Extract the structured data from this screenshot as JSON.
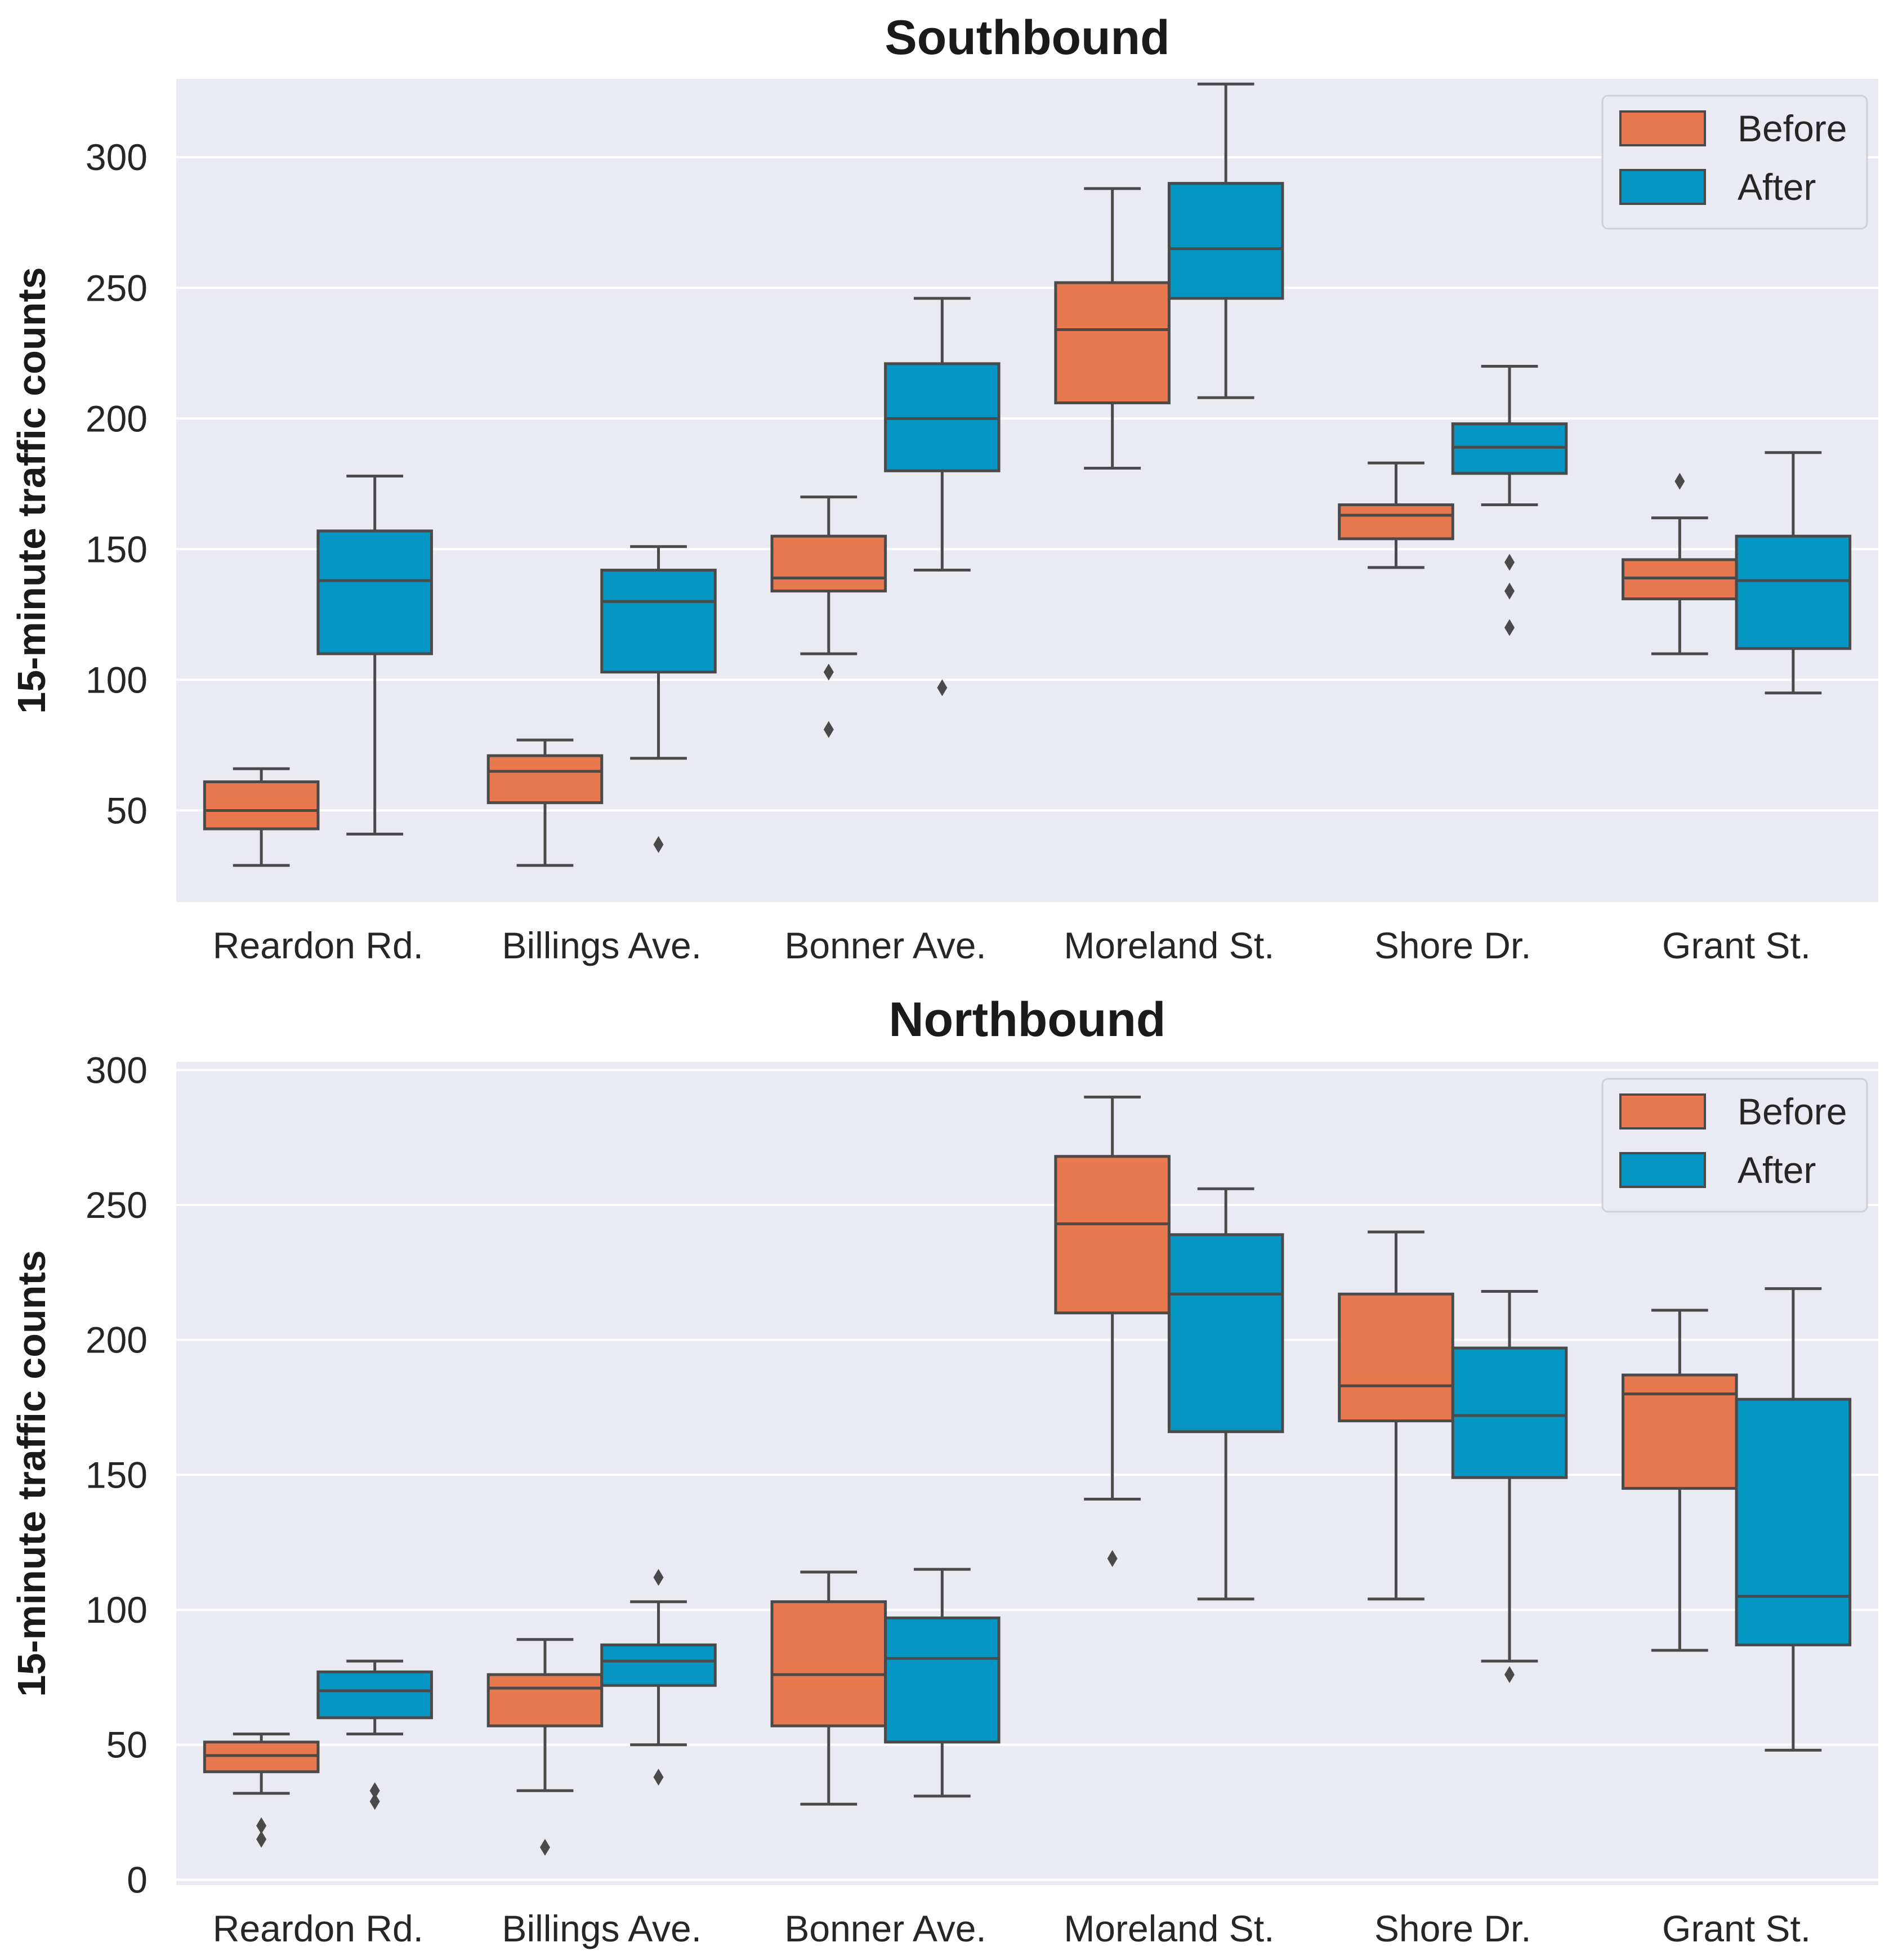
{
  "colors": {
    "before": "#e8784d",
    "after": "#0596c4",
    "panel_background": "#eaeaf2",
    "grid": "#ffffff",
    "line": "#4a4a4a"
  },
  "chart_data": [
    {
      "type": "box",
      "title": "Southbound",
      "xlabel": "",
      "ylabel": "15-minute traffic counts",
      "ylim": [
        15,
        330
      ],
      "yticks": [
        50,
        100,
        150,
        200,
        250,
        300
      ],
      "grid": true,
      "legend": "top-right",
      "categories": [
        "Reardon Rd.",
        "Billings Ave.",
        "Bonner Ave.",
        "Moreland St.",
        "Shore Dr.",
        "Grant St."
      ],
      "series": [
        {
          "name": "Before",
          "color_key": "before",
          "boxes": [
            {
              "whislo": 29,
              "q1": 43,
              "med": 50,
              "q3": 61,
              "whishi": 66,
              "fliers": []
            },
            {
              "whislo": 29,
              "q1": 53,
              "med": 65,
              "q3": 71,
              "whishi": 77,
              "fliers": []
            },
            {
              "whislo": 110,
              "q1": 134,
              "med": 139,
              "q3": 155,
              "whishi": 170,
              "fliers": [
                103,
                81
              ]
            },
            {
              "whislo": 181,
              "q1": 206,
              "med": 234,
              "q3": 252,
              "whishi": 288,
              "fliers": []
            },
            {
              "whislo": 143,
              "q1": 154,
              "med": 163,
              "q3": 167,
              "whishi": 183,
              "fliers": []
            },
            {
              "whislo": 110,
              "q1": 131,
              "med": 139,
              "q3": 146,
              "whishi": 162,
              "fliers": [
                176
              ]
            }
          ]
        },
        {
          "name": "After",
          "color_key": "after",
          "boxes": [
            {
              "whislo": 41,
              "q1": 110,
              "med": 138,
              "q3": 157,
              "whishi": 178,
              "fliers": []
            },
            {
              "whislo": 70,
              "q1": 103,
              "med": 130,
              "q3": 142,
              "whishi": 151,
              "fliers": [
                37
              ]
            },
            {
              "whislo": 142,
              "q1": 180,
              "med": 200,
              "q3": 221,
              "whishi": 246,
              "fliers": [
                97
              ]
            },
            {
              "whislo": 208,
              "q1": 246,
              "med": 265,
              "q3": 290,
              "whishi": 328,
              "fliers": []
            },
            {
              "whislo": 167,
              "q1": 179,
              "med": 189,
              "q3": 198,
              "whishi": 220,
              "fliers": [
                145,
                134,
                120
              ]
            },
            {
              "whislo": 95,
              "q1": 112,
              "med": 138,
              "q3": 155,
              "whishi": 187,
              "fliers": []
            }
          ]
        }
      ]
    },
    {
      "type": "box",
      "title": "Northbound",
      "xlabel": "",
      "ylabel": "15-minute traffic counts",
      "ylim": [
        -2,
        303
      ],
      "yticks": [
        0,
        50,
        100,
        150,
        200,
        250,
        300
      ],
      "grid": true,
      "legend": "top-right",
      "categories": [
        "Reardon Rd.",
        "Billings Ave.",
        "Bonner Ave.",
        "Moreland St.",
        "Shore Dr.",
        "Grant St."
      ],
      "series": [
        {
          "name": "Before",
          "color_key": "before",
          "boxes": [
            {
              "whislo": 32,
              "q1": 40,
              "med": 46,
              "q3": 51,
              "whishi": 54,
              "fliers": [
                20,
                15
              ]
            },
            {
              "whislo": 33,
              "q1": 57,
              "med": 71,
              "q3": 76,
              "whishi": 89,
              "fliers": [
                12
              ]
            },
            {
              "whislo": 28,
              "q1": 57,
              "med": 76,
              "q3": 103,
              "whishi": 114,
              "fliers": []
            },
            {
              "whislo": 141,
              "q1": 210,
              "med": 243,
              "q3": 268,
              "whishi": 290,
              "fliers": [
                119
              ]
            },
            {
              "whislo": 104,
              "q1": 170,
              "med": 183,
              "q3": 217,
              "whishi": 240,
              "fliers": []
            },
            {
              "whislo": 85,
              "q1": 145,
              "med": 180,
              "q3": 187,
              "whishi": 211,
              "fliers": []
            }
          ]
        },
        {
          "name": "After",
          "color_key": "after",
          "boxes": [
            {
              "whislo": 54,
              "q1": 60,
              "med": 70,
              "q3": 77,
              "whishi": 81,
              "fliers": [
                33,
                29
              ]
            },
            {
              "whislo": 50,
              "q1": 72,
              "med": 81,
              "q3": 87,
              "whishi": 103,
              "fliers": [
                112,
                38
              ]
            },
            {
              "whislo": 31,
              "q1": 51,
              "med": 82,
              "q3": 97,
              "whishi": 115,
              "fliers": []
            },
            {
              "whislo": 104,
              "q1": 166,
              "med": 217,
              "q3": 239,
              "whishi": 256,
              "fliers": []
            },
            {
              "whislo": 81,
              "q1": 149,
              "med": 172,
              "q3": 197,
              "whishi": 218,
              "fliers": [
                76
              ]
            },
            {
              "whislo": 48,
              "q1": 87,
              "med": 105,
              "q3": 178,
              "whishi": 219,
              "fliers": []
            }
          ]
        }
      ]
    }
  ]
}
